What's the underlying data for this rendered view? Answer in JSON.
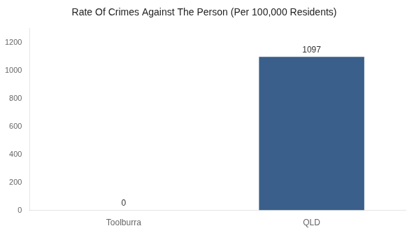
{
  "chart_data": {
    "type": "bar",
    "title": "Rate Of Crimes Against The Person (Per 100,000 Residents)",
    "categories": [
      "Toolburra",
      "QLD"
    ],
    "values": [
      0,
      1097
    ],
    "color": "#3a5f8a",
    "ylim": [
      0,
      1300
    ],
    "yticks": [
      0,
      200,
      400,
      600,
      800,
      1000,
      1200
    ],
    "grid": false,
    "data_labels": true
  }
}
